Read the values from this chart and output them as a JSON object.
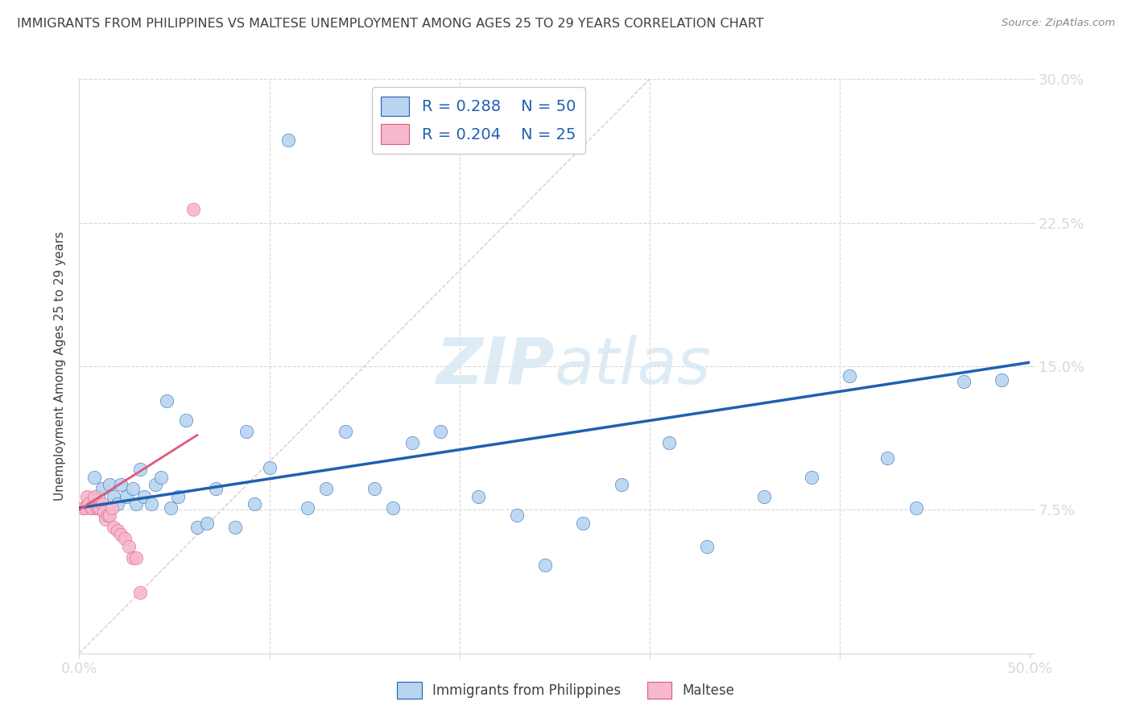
{
  "title": "IMMIGRANTS FROM PHILIPPINES VS MALTESE UNEMPLOYMENT AMONG AGES 25 TO 29 YEARS CORRELATION CHART",
  "source": "Source: ZipAtlas.com",
  "ylabel": "Unemployment Among Ages 25 to 29 years",
  "xlim": [
    0.0,
    0.5
  ],
  "ylim": [
    0.0,
    0.3
  ],
  "xticks": [
    0.0,
    0.1,
    0.2,
    0.3,
    0.4,
    0.5
  ],
  "xticklabels": [
    "0.0%",
    "",
    "",
    "",
    "",
    "50.0%"
  ],
  "yticks": [
    0.0,
    0.075,
    0.15,
    0.225,
    0.3
  ],
  "yticklabels": [
    "",
    "7.5%",
    "15.0%",
    "22.5%",
    "30.0%"
  ],
  "legend_r1": "R = 0.288",
  "legend_n1": "N = 50",
  "legend_r2": "R = 0.204",
  "legend_n2": "N = 25",
  "blue_color": "#b8d4f0",
  "pink_color": "#f5b8cc",
  "blue_line_color": "#2060b0",
  "pink_line_color": "#e05878",
  "diag_line_color": "#e0c8cc",
  "grid_color": "#d8d8d8",
  "title_color": "#404040",
  "axis_label_color": "#404040",
  "tick_color": "#4488cc",
  "watermark_color": "#d8e8f4",
  "blue_scatter_x": [
    0.005,
    0.008,
    0.01,
    0.012,
    0.014,
    0.016,
    0.018,
    0.02,
    0.022,
    0.025,
    0.028,
    0.03,
    0.032,
    0.034,
    0.038,
    0.04,
    0.043,
    0.046,
    0.048,
    0.052,
    0.056,
    0.062,
    0.067,
    0.072,
    0.082,
    0.088,
    0.092,
    0.1,
    0.11,
    0.12,
    0.13,
    0.14,
    0.155,
    0.165,
    0.175,
    0.19,
    0.21,
    0.23,
    0.245,
    0.265,
    0.285,
    0.31,
    0.33,
    0.36,
    0.385,
    0.405,
    0.425,
    0.44,
    0.465,
    0.485
  ],
  "blue_scatter_y": [
    0.078,
    0.092,
    0.082,
    0.086,
    0.072,
    0.088,
    0.082,
    0.078,
    0.088,
    0.082,
    0.086,
    0.078,
    0.096,
    0.082,
    0.078,
    0.088,
    0.092,
    0.132,
    0.076,
    0.082,
    0.122,
    0.066,
    0.068,
    0.086,
    0.066,
    0.116,
    0.078,
    0.097,
    0.268,
    0.076,
    0.086,
    0.116,
    0.086,
    0.076,
    0.11,
    0.116,
    0.082,
    0.072,
    0.046,
    0.068,
    0.088,
    0.11,
    0.056,
    0.082,
    0.092,
    0.145,
    0.102,
    0.076,
    0.142,
    0.143
  ],
  "pink_scatter_x": [
    0.002,
    0.003,
    0.004,
    0.005,
    0.006,
    0.007,
    0.008,
    0.009,
    0.01,
    0.011,
    0.012,
    0.013,
    0.014,
    0.015,
    0.016,
    0.017,
    0.018,
    0.02,
    0.022,
    0.024,
    0.026,
    0.028,
    0.03,
    0.032,
    0.06
  ],
  "pink_scatter_y": [
    0.076,
    0.076,
    0.082,
    0.078,
    0.076,
    0.076,
    0.082,
    0.076,
    0.076,
    0.076,
    0.078,
    0.074,
    0.07,
    0.072,
    0.072,
    0.076,
    0.066,
    0.064,
    0.062,
    0.06,
    0.056,
    0.05,
    0.05,
    0.032,
    0.232
  ],
  "blue_line_x": [
    0.0,
    0.5
  ],
  "blue_line_y": [
    0.076,
    0.152
  ],
  "pink_line_x": [
    0.0,
    0.062
  ],
  "pink_line_y": [
    0.075,
    0.114
  ],
  "diag_line_x": [
    0.0,
    0.3
  ],
  "diag_line_y": [
    0.0,
    0.3
  ]
}
